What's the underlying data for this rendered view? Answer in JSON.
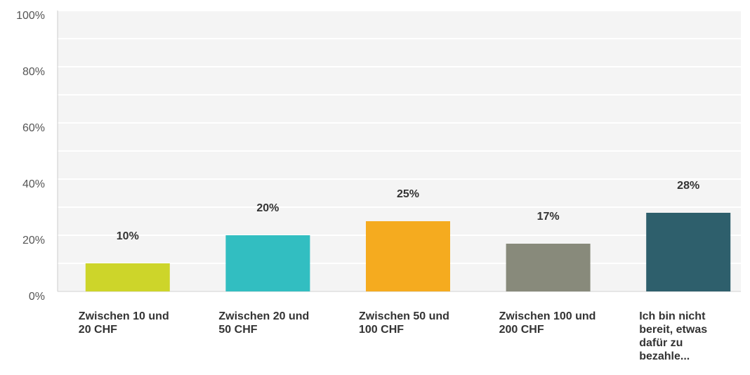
{
  "chart_data": {
    "type": "bar",
    "categories": [
      "Zwischen 10 und 20 CHF",
      "Zwischen 20 und 50 CHF",
      "Zwischen 50 und 100 CHF",
      "Zwischen 100 und 200 CHF",
      "Ich bin nicht bereit, etwas dafür zu bezahle..."
    ],
    "values": [
      10,
      20,
      25,
      17,
      28
    ],
    "value_labels": [
      "10%",
      "20%",
      "25%",
      "17%",
      "28%"
    ],
    "colors": [
      "#cdd52a",
      "#32bec1",
      "#f5ab1f",
      "#888a7b",
      "#2e5f6c"
    ],
    "ylim": [
      0,
      100
    ],
    "yticks": [
      {
        "value": 0,
        "label": "0%"
      },
      {
        "value": 20,
        "label": "20%"
      },
      {
        "value": 40,
        "label": "40%"
      },
      {
        "value": 60,
        "label": "60%"
      },
      {
        "value": 80,
        "label": "80%"
      },
      {
        "value": 100,
        "label": "100%"
      }
    ],
    "minor_yticks": [
      10,
      30,
      50,
      70,
      90
    ],
    "grid": true
  }
}
